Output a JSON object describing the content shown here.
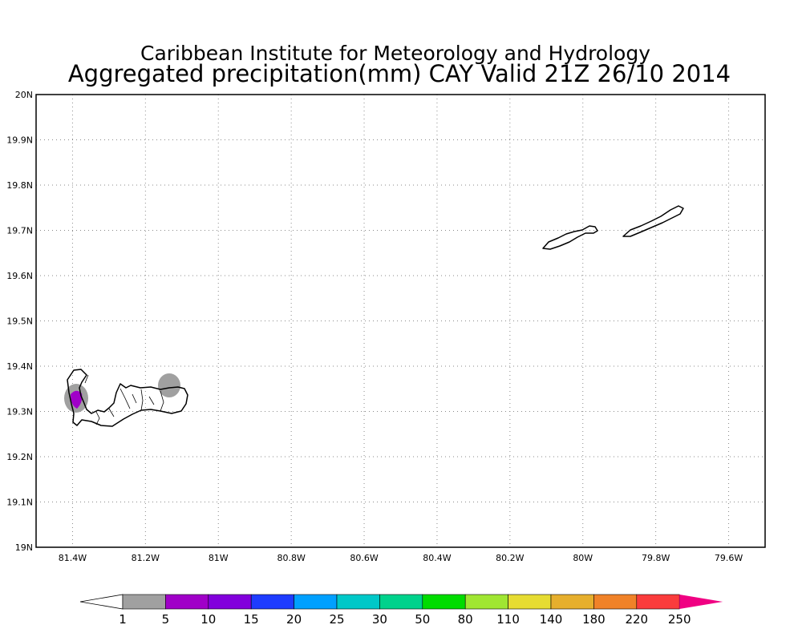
{
  "header": {
    "title": "Caribbean Institute for Meteorology and Hydrology",
    "subtitle": "Aggregated precipitation(mm) CAY Valid 21Z 26/10 2014"
  },
  "map": {
    "lat_range": [
      19.0,
      20.0
    ],
    "lon_range": [
      -81.5,
      -79.5
    ],
    "grid": "dotted",
    "lat_ticks": [
      "19N",
      "19.1N",
      "19.2N",
      "19.3N",
      "19.4N",
      "19.5N",
      "19.6N",
      "19.7N",
      "19.8N",
      "19.9N",
      "20N"
    ],
    "lon_ticks": [
      "81.4W",
      "81.2W",
      "81W",
      "80.8W",
      "80.6W",
      "80.4W",
      "80.2W",
      "80W",
      "79.8W",
      "79.6W"
    ]
  },
  "colorbar": {
    "labels": [
      "1",
      "5",
      "10",
      "15",
      "20",
      "25",
      "30",
      "50",
      "80",
      "110",
      "140",
      "180",
      "220",
      "250"
    ],
    "colors": [
      "#a0a0a0",
      "#a000c8",
      "#8200dc",
      "#1e3cff",
      "#00a0ff",
      "#00c8c8",
      "#00d28c",
      "#00dc00",
      "#a0e632",
      "#e6dc32",
      "#e6af2d",
      "#f08228",
      "#fa3c3c"
    ],
    "under_color": "#ffffff",
    "over_color": "#f00082"
  },
  "precip_areas": [
    {
      "level": "1-5",
      "color": "#a0a0a0"
    },
    {
      "level": "1-5",
      "color": "#a0a0a0"
    },
    {
      "level": "5-10",
      "color": "#a000c8"
    }
  ]
}
